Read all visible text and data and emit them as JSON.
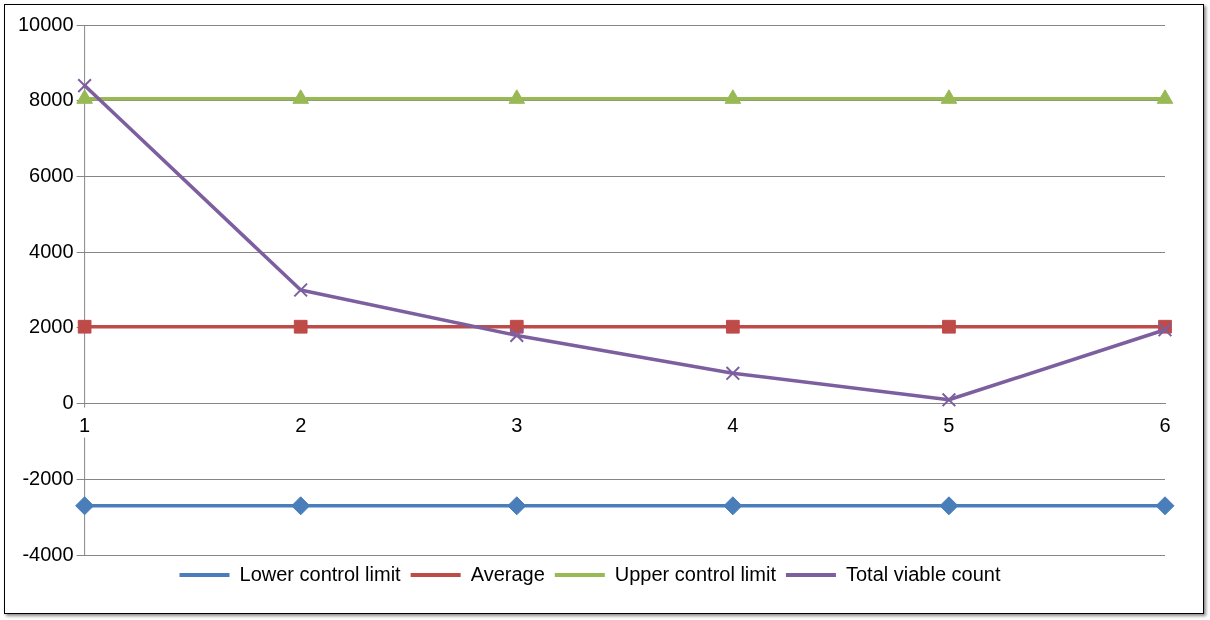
{
  "chart_data": {
    "type": "line",
    "categories": [
      "1",
      "2",
      "3",
      "4",
      "5",
      "6"
    ],
    "series": [
      {
        "name": "Lower control limit",
        "color": "#4a7ebb",
        "marker": "diamond",
        "values": [
          -2700,
          -2700,
          -2700,
          -2700,
          -2700,
          -2700
        ]
      },
      {
        "name": "Average",
        "color": "#be4b48",
        "marker": "square",
        "values": [
          2030,
          2030,
          2030,
          2030,
          2030,
          2030
        ]
      },
      {
        "name": "Upper control limit",
        "color": "#98b954",
        "marker": "triangle",
        "values": [
          8050,
          8050,
          8050,
          8050,
          8050,
          8050
        ]
      },
      {
        "name": "Total viable count",
        "color": "#7d5fa0",
        "marker": "cross",
        "values": [
          8400,
          3000,
          1800,
          800,
          100,
          1950
        ]
      }
    ],
    "ylim": [
      -4000,
      10000
    ],
    "yticks": [
      -4000,
      -2000,
      0,
      2000,
      4000,
      6000,
      8000,
      10000
    ],
    "grid": "y",
    "legend": "bottom"
  }
}
